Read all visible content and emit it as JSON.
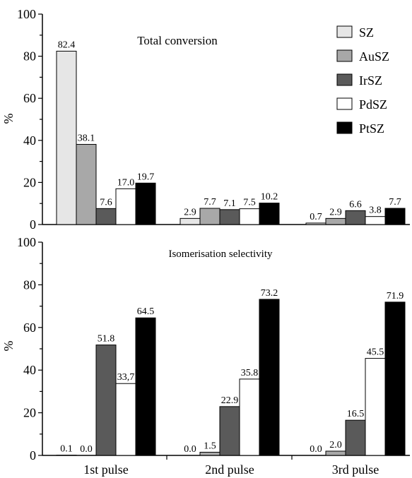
{
  "colors": {
    "SZ": "#e6e6e6",
    "AuSZ": "#a8a8a8",
    "IrSZ": "#5a5a5a",
    "PdSZ": "#ffffff",
    "PtSZ": "#000000"
  },
  "chart_data": [
    {
      "type": "bar",
      "title": "Total conversion",
      "ylabel": "%",
      "xlabel": "",
      "ylim": [
        0,
        100
      ],
      "yticks": [
        0,
        20,
        40,
        60,
        80,
        100
      ],
      "grid": false,
      "legend_position": "top-right",
      "categories": [
        "1st pulse",
        "2nd pulse",
        "3rd pulse"
      ],
      "series": [
        {
          "name": "SZ",
          "values": [
            82.4,
            2.9,
            0.7
          ],
          "labels": [
            "82.4",
            "2.9",
            "0.7"
          ]
        },
        {
          "name": "AuSZ",
          "values": [
            38.1,
            7.7,
            2.9
          ],
          "labels": [
            "38.1",
            "7.7",
            "2.9"
          ]
        },
        {
          "name": "IrSZ",
          "values": [
            7.6,
            7.1,
            6.6
          ],
          "labels": [
            "7.6",
            "7.1",
            "6.6"
          ]
        },
        {
          "name": "PdSZ",
          "values": [
            17.0,
            7.5,
            3.8
          ],
          "labels": [
            "17.0",
            "7.5",
            "3.8"
          ]
        },
        {
          "name": "PtSZ",
          "values": [
            19.7,
            10.2,
            7.7
          ],
          "labels": [
            "19.7",
            "10.2",
            "7.7"
          ]
        }
      ]
    },
    {
      "type": "bar",
      "title": "Isomerisation selectivity",
      "ylabel": "%",
      "xlabel": "",
      "ylim": [
        0,
        100
      ],
      "yticks": [
        0,
        20,
        40,
        60,
        80,
        100
      ],
      "grid": false,
      "categories": [
        "1st pulse",
        "2nd pulse",
        "3rd pulse"
      ],
      "series": [
        {
          "name": "SZ",
          "values": [
            0.1,
            0.0,
            0.0
          ],
          "labels": [
            "0.1",
            "0.0",
            "0.0"
          ]
        },
        {
          "name": "AuSZ",
          "values": [
            0.0,
            1.5,
            2.0
          ],
          "labels": [
            "0.0",
            "1.5",
            "2.0"
          ]
        },
        {
          "name": "IrSZ",
          "values": [
            51.8,
            22.9,
            16.5
          ],
          "labels": [
            "51.8",
            "22.9",
            "16.5"
          ]
        },
        {
          "name": "PdSZ",
          "values": [
            33.7,
            35.8,
            45.5
          ],
          "labels": [
            "33,7",
            "35.8",
            "45.5"
          ]
        },
        {
          "name": "PtSZ",
          "values": [
            64.5,
            73.2,
            71.9
          ],
          "labels": [
            "64.5",
            "73.2",
            "71.9"
          ]
        }
      ]
    }
  ]
}
